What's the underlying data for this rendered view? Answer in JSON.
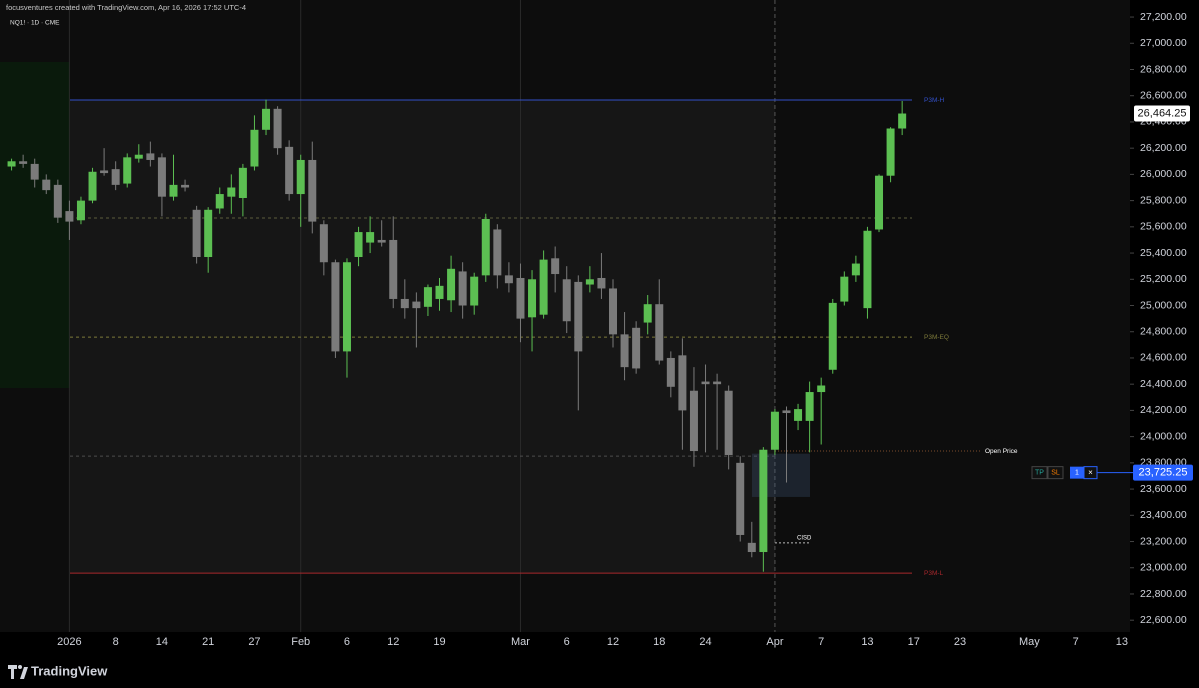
{
  "chart_data": {
    "type": "candlestick",
    "header": "focusventures created with TradingView.com, Apr 16, 2026 17:52 UTC-4",
    "symbol": "NQ1! · 1D · CME",
    "up_color": "#5cbf52",
    "down_color": "#7b7b7b",
    "x": [
      -5,
      -4,
      -3,
      -2,
      -1,
      0,
      1,
      2,
      3,
      4,
      5,
      6,
      7,
      8,
      9,
      10,
      11,
      12,
      13,
      14,
      15,
      16,
      17,
      18,
      19,
      20,
      21,
      22,
      23,
      24,
      25,
      26,
      27,
      28,
      29,
      30,
      31,
      32,
      33,
      34,
      35,
      36,
      37,
      38,
      39,
      40,
      41,
      42,
      43,
      44,
      45,
      46,
      47,
      48,
      49,
      50,
      51,
      52,
      53,
      54,
      55,
      56,
      57,
      58,
      59,
      60,
      61,
      62,
      63,
      64,
      65,
      66,
      67,
      68,
      69,
      70,
      71,
      72
    ],
    "open": [
      26060,
      26100,
      26080,
      25960,
      25920,
      25720,
      25650,
      25800,
      26030,
      26040,
      25930,
      26120,
      26160,
      26130,
      25830,
      25920,
      25730,
      25370,
      25740,
      25830,
      25820,
      26060,
      26340,
      26500,
      26210,
      25850,
      26110,
      25620,
      25330,
      24650,
      25370,
      25480,
      25500,
      25500,
      25050,
      25030,
      24990,
      25050,
      25040,
      25260,
      25000,
      25230,
      25580,
      25230,
      25210,
      24910,
      24930,
      25360,
      25200,
      25180,
      25160,
      25210,
      25130,
      24780,
      24830,
      24870,
      25010,
      24600,
      24620,
      24350,
      24420,
      24420,
      24350,
      23800,
      23190,
      23120,
      23900,
      24200,
      24120,
      24120,
      24340,
      24510,
      25030,
      25230,
      24980,
      25580,
      25990,
      26350
    ],
    "high": [
      26120,
      26150,
      26120,
      26000,
      25960,
      25800,
      25830,
      26050,
      26200,
      26100,
      26160,
      26230,
      26250,
      26160,
      26150,
      25960,
      25760,
      25750,
      25900,
      26000,
      26080,
      26450,
      26570,
      26520,
      26260,
      26150,
      26250,
      25650,
      25350,
      25360,
      25600,
      25680,
      25650,
      25680,
      25200,
      25100,
      25160,
      25210,
      25380,
      25330,
      25250,
      25700,
      25620,
      25330,
      25320,
      25270,
      25420,
      25450,
      25300,
      25230,
      25300,
      25400,
      25200,
      24950,
      24880,
      25080,
      25200,
      24650,
      24750,
      24530,
      24550,
      24480,
      24390,
      23850,
      23350,
      23920,
      24210,
      24230,
      24250,
      24420,
      24450,
      25050,
      25260,
      25380,
      25600,
      26000,
      26360,
      26560
    ],
    "low": [
      26030,
      26050,
      25900,
      25850,
      25630,
      25500,
      25620,
      25780,
      25990,
      25880,
      25900,
      26090,
      26060,
      25680,
      25800,
      25870,
      25320,
      25250,
      25700,
      25700,
      25680,
      26030,
      26300,
      26150,
      25800,
      25600,
      25550,
      25230,
      24600,
      24450,
      25300,
      25400,
      25450,
      24980,
      24900,
      24680,
      24920,
      24960,
      24950,
      24900,
      24930,
      25180,
      25130,
      25100,
      24720,
      24650,
      24900,
      25100,
      24790,
      24200,
      25100,
      25050,
      24680,
      24430,
      24480,
      24780,
      24550,
      24300,
      23900,
      23770,
      23880,
      23900,
      23750,
      23200,
      23080,
      22970,
      23860,
      23650,
      24050,
      23880,
      23940,
      24480,
      25000,
      25180,
      24900,
      25560,
      25940,
      26300
    ],
    "close": [
      26100,
      26080,
      25960,
      25880,
      25670,
      25640,
      25800,
      26020,
      26010,
      25920,
      26130,
      26150,
      26110,
      25830,
      25920,
      25900,
      25370,
      25730,
      25850,
      25900,
      26050,
      26340,
      26500,
      26200,
      25850,
      26110,
      25640,
      25330,
      24650,
      25330,
      25560,
      25560,
      25480,
      25050,
      24980,
      24980,
      25140,
      25150,
      25280,
      25000,
      25220,
      25660,
      25230,
      25170,
      24900,
      25200,
      25350,
      25240,
      24880,
      24650,
      25200,
      25130,
      24780,
      24530,
      24520,
      25010,
      24580,
      24380,
      24200,
      23890,
      24400,
      24400,
      23860,
      23250,
      23120,
      23900,
      24190,
      24180,
      24210,
      24340,
      24390,
      25020,
      25220,
      25320,
      25570,
      25990,
      26350,
      26464.25
    ],
    "xlim": [
      -6,
      91.7
    ],
    "ylim": [
      22510,
      27330
    ],
    "xticks": [
      {
        "value": 0,
        "label": "2026",
        "separator": "solid"
      },
      {
        "value": 4,
        "label": "8"
      },
      {
        "value": 8,
        "label": "14"
      },
      {
        "value": 12,
        "label": "21"
      },
      {
        "value": 16,
        "label": "27"
      },
      {
        "value": 20,
        "label": "Feb",
        "separator": "solid"
      },
      {
        "value": 24,
        "label": "6"
      },
      {
        "value": 28,
        "label": "12"
      },
      {
        "value": 32,
        "label": "19"
      },
      {
        "value": 39,
        "label": "Mar",
        "separator": "solid"
      },
      {
        "value": 43,
        "label": "6"
      },
      {
        "value": 47,
        "label": "12"
      },
      {
        "value": 51,
        "label": "18"
      },
      {
        "value": 55,
        "label": "24"
      },
      {
        "value": 61,
        "label": "Apr",
        "separator": "dashed"
      },
      {
        "value": 65,
        "label": "7"
      },
      {
        "value": 69,
        "label": "13"
      },
      {
        "value": 73,
        "label": "17"
      },
      {
        "value": 77,
        "label": "23"
      },
      {
        "value": 83,
        "label": "May"
      },
      {
        "value": 87,
        "label": "7"
      },
      {
        "value": 91,
        "label": "13"
      }
    ],
    "yticks": [
      {
        "value": 22600,
        "label": "22,600.00"
      },
      {
        "value": 22800,
        "label": "22,800.00"
      },
      {
        "value": 23000,
        "label": "23,000.00"
      },
      {
        "value": 23200,
        "label": "23,200.00"
      },
      {
        "value": 23400,
        "label": "23,400.00"
      },
      {
        "value": 23600,
        "label": "23,600.00"
      },
      {
        "value": 23800,
        "label": "23,800.00"
      },
      {
        "value": 24000,
        "label": "24,000.00"
      },
      {
        "value": 24200,
        "label": "24,200.00"
      },
      {
        "value": 24400,
        "label": "24,400.00"
      },
      {
        "value": 24600,
        "label": "24,600.00"
      },
      {
        "value": 24800,
        "label": "24,800.00"
      },
      {
        "value": 25000,
        "label": "25,000.00"
      },
      {
        "value": 25200,
        "label": "25,200.00"
      },
      {
        "value": 25400,
        "label": "25,400.00"
      },
      {
        "value": 25600,
        "label": "25,600.00"
      },
      {
        "value": 25800,
        "label": "25,800.00"
      },
      {
        "value": 26000,
        "label": "26,000.00"
      },
      {
        "value": 26200,
        "label": "26,200.00"
      },
      {
        "value": 26400,
        "label": "26,400.00"
      },
      {
        "value": 26600,
        "label": "26,600.00"
      },
      {
        "value": 26800,
        "label": "26,800.00"
      },
      {
        "value": 27000,
        "label": "27,000.00"
      },
      {
        "value": 27200,
        "label": "27,200.00"
      }
    ],
    "last_price": 26464.25,
    "last_price_label": "26,464.25",
    "levels": [
      {
        "name": "P3M-H",
        "value": 26567,
        "color": "#3350c8",
        "style": "solid"
      },
      {
        "value": 25667,
        "color": "#5c5c3c",
        "style": "dashed"
      },
      {
        "name": "P3M-EQ",
        "value": 24759,
        "color": "#7d7a3a",
        "style": "dashed"
      },
      {
        "value": 23851,
        "color": "#4e4e4e",
        "style": "dashed",
        "extent": "to-cursor"
      },
      {
        "name": "P3M-L",
        "value": 22959,
        "color": "#a8282c",
        "style": "solid"
      }
    ],
    "open_price": {
      "name": "Open Price",
      "value": 23890,
      "color": "#7a4a2a"
    },
    "cisd": {
      "name": "CISD",
      "value": 23190
    },
    "position": {
      "top": 23870,
      "bottom": 23540,
      "entry": 23725.25,
      "entry_label": "23,725.25",
      "tp": "TP",
      "sl": "SL",
      "qty": 1,
      "close": "×"
    },
    "brand": "TradingView"
  }
}
